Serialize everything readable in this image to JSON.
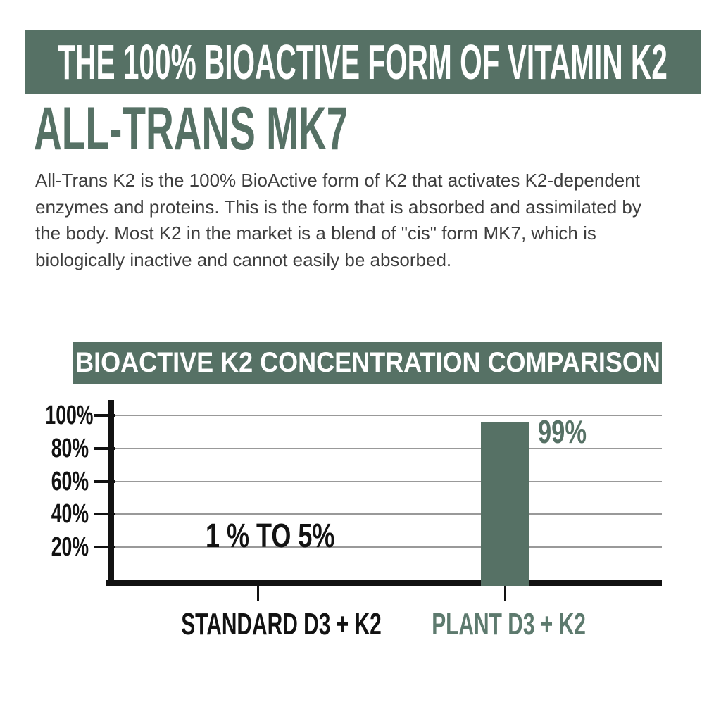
{
  "colors": {
    "accent_green": "#567165",
    "accent_green_light": "#5d7a6e",
    "bar_black": "#121212",
    "gridline_gray": "#999999",
    "body_text": "#3e3e3e",
    "background": "#ffffff"
  },
  "header": {
    "banner_title": "THE 100% BIOACTIVE FORM OF VITAMIN K2",
    "page_title": "ALL-TRANS MK7",
    "paragraph": "All-Trans K2 is the 100% BioActive form of K2 that activates K2-dependent enzymes and proteins. This is the form that is absorbed and assimilated by the body. Most K2 in the market is a blend of \"cis\" form MK7, which is biologically inactive and cannot easily be absorbed."
  },
  "chart": {
    "title": "BIOACTIVE K2 CONCENTRATION COMPARISON",
    "y_axis_labels": [
      "100%",
      "80%",
      "60%",
      "40%",
      "20%"
    ],
    "bar_annotations": [
      "1 % TO 5%",
      "99%"
    ],
    "categories": [
      "STANDARD D3 + K2",
      "PLANT D3 + K2"
    ]
  },
  "chart_data": {
    "type": "bar",
    "title": "BIOACTIVE K2 CONCENTRATION COMPARISON",
    "categories": [
      "STANDARD D3 + K2",
      "PLANT D3 + K2"
    ],
    "values": [
      3,
      99
    ],
    "value_labels": [
      "1 % TO 5%",
      "99%"
    ],
    "xlabel": "",
    "ylabel": "",
    "ytick_labels": [
      "20%",
      "40%",
      "60%",
      "80%",
      "100%"
    ],
    "ytick_values": [
      20,
      40,
      60,
      80,
      100
    ],
    "ylim": [
      0,
      113
    ],
    "grid": true,
    "legend": false,
    "legend_position": "none",
    "bar_colors": [
      "#121212",
      "#567165"
    ]
  }
}
